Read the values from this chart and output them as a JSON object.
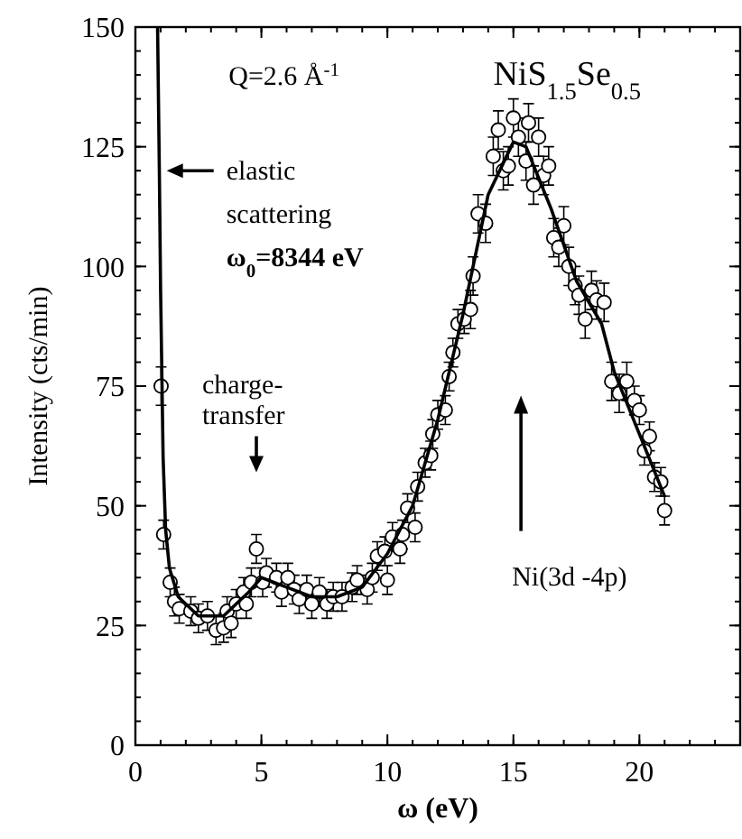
{
  "chart_data": {
    "type": "scatter",
    "xlabel": "ω  (eV)",
    "ylabel": "Intensity (cts/min)",
    "xlim": [
      0,
      24
    ],
    "ylim": [
      0,
      150
    ],
    "xticks": [
      0,
      5,
      10,
      15,
      20
    ],
    "yticks": [
      0,
      25,
      50,
      75,
      100,
      125,
      150
    ],
    "grid": false,
    "annotations": [
      "Q=2.6 Å$^{-1}$",
      "NiS$_{1.5}$Se$_{0.5}$",
      {
        "text": "elastic\nscattering\nω$_{0}$=8344 eV",
        "x": 1.1,
        "y": 120
      },
      "charge-\ntransfer",
      "Ni(3d -4p)"
    ],
    "series": [
      {
        "marker": "circle",
        "color": "#000000",
        "x": [
          1.02,
          1.12,
          1.38,
          1.55,
          1.74,
          2.2,
          2.5,
          2.86,
          3.2,
          3.5,
          3.64,
          3.8,
          4.0,
          4.3,
          4.4,
          4.6,
          4.8,
          5.05,
          5.2,
          5.6,
          5.8,
          6.05,
          6.3,
          6.5,
          6.8,
          7.0,
          7.3,
          7.6,
          7.85,
          8.2,
          8.6,
          8.8,
          9.2,
          9.4,
          9.6,
          9.9,
          10.0,
          10.2,
          10.5,
          10.6,
          10.8,
          11.1,
          11.2,
          11.5,
          11.72,
          11.8,
          12.0,
          12.3,
          12.45,
          12.6,
          12.8,
          13.05,
          13.3,
          13.4,
          13.6,
          13.9,
          14.2,
          14.4,
          14.6,
          14.8,
          15.0,
          15.2,
          15.5,
          15.6,
          15.8,
          16.0,
          16.2,
          16.4,
          16.6,
          16.8,
          17.0,
          17.2,
          17.45,
          17.6,
          17.85,
          18.1,
          18.3,
          18.6,
          18.9,
          19.2,
          19.5,
          19.8,
          20.0,
          20.2,
          20.4,
          20.6,
          20.85,
          21.0
        ],
        "values": [
          75,
          44,
          34,
          30,
          28.5,
          28,
          26.5,
          27,
          24,
          24.5,
          28,
          25.5,
          29.5,
          32,
          29.5,
          34,
          41,
          34,
          36,
          35,
          32,
          35,
          32.5,
          30.5,
          32.5,
          29.5,
          32,
          29.5,
          31,
          31,
          33,
          34.5,
          32.5,
          35,
          39.5,
          40.5,
          34.5,
          43.5,
          41,
          44,
          49.5,
          45.5,
          54,
          59,
          60.5,
          65,
          69,
          70,
          77,
          82,
          88,
          89,
          91,
          98,
          111,
          109,
          123,
          128.5,
          120,
          121,
          131,
          127,
          122,
          130,
          117,
          127,
          119,
          121,
          106,
          104,
          108.5,
          100,
          96,
          94,
          89,
          95,
          93,
          92.5,
          76,
          73.5,
          76,
          72,
          70,
          61.5,
          64.5,
          56,
          55,
          49
        ],
        "errors": [
          4,
          3,
          3,
          3,
          3,
          3,
          3,
          3,
          3,
          3,
          3,
          3,
          3,
          3,
          3,
          3,
          3,
          3,
          3,
          3,
          3,
          3,
          3,
          3,
          3,
          3,
          3,
          3,
          3,
          3,
          3,
          3,
          3,
          3,
          3,
          3,
          3,
          3,
          3,
          3,
          3,
          3,
          3,
          3,
          3,
          3,
          3,
          3,
          3,
          3,
          3,
          3,
          4,
          4,
          4,
          4,
          4,
          4,
          4,
          4,
          4,
          4,
          4,
          4,
          4,
          4,
          4,
          4,
          4,
          4,
          4,
          4,
          4,
          4,
          4,
          4,
          4,
          4,
          4,
          4,
          4,
          3,
          3,
          3,
          3,
          3,
          3,
          3
        ]
      },
      {
        "type": "line",
        "marker": "none",
        "line_style": "solid",
        "color": "#000000",
        "x": [
          0.88,
          0.95,
          1.0,
          1.1,
          1.2,
          1.35,
          1.7,
          2.5,
          3.5,
          4.5,
          5.0,
          6.0,
          7.0,
          8.0,
          9.0,
          10.0,
          11.0,
          12.0,
          13.0,
          14.0,
          15.0,
          15.5,
          16.5,
          17.5,
          18.5,
          19.0,
          20.0,
          21.0
        ],
        "values": [
          150,
          120,
          95,
          60,
          45,
          37,
          31,
          27,
          27,
          32,
          35,
          33,
          31,
          31,
          33,
          40,
          50,
          68,
          90,
          115,
          126,
          125,
          112,
          97,
          88,
          78,
          65,
          52
        ]
      }
    ]
  }
}
